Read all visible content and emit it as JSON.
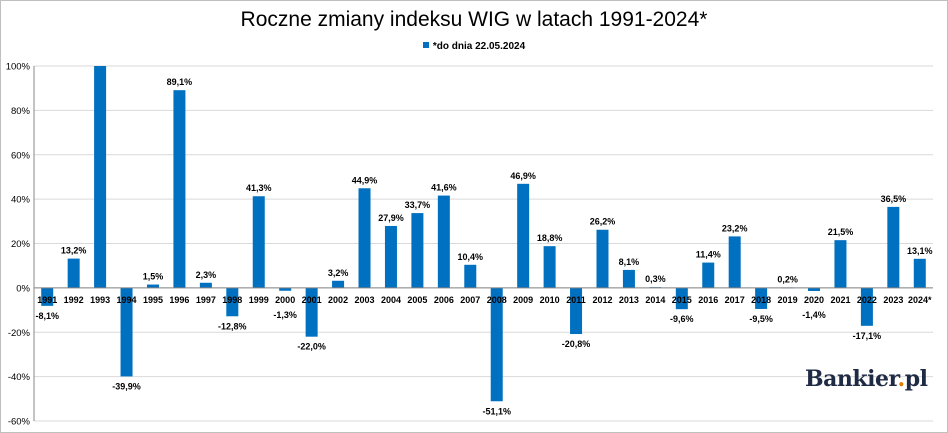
{
  "chart_data": {
    "type": "bar",
    "title": "Roczne zmiany indeksu WIG w latach 1991-2024*",
    "legend": {
      "label": "*do dnia 22.05.2024",
      "position": "top-center"
    },
    "categories": [
      "1991",
      "1992",
      "1993",
      "1994",
      "1995",
      "1996",
      "1997",
      "1998",
      "1999",
      "2000",
      "2001",
      "2002",
      "2003",
      "2004",
      "2005",
      "2006",
      "2007",
      "2008",
      "2009",
      "2010",
      "2011",
      "2012",
      "2013",
      "2014",
      "2015",
      "2016",
      "2017",
      "2018",
      "2019",
      "2020",
      "2021",
      "2022",
      "2023",
      "2024*"
    ],
    "values": [
      -8.1,
      13.2,
      100,
      -39.9,
      1.5,
      89.1,
      2.3,
      -12.8,
      41.3,
      -1.3,
      -22.0,
      3.2,
      44.9,
      27.9,
      33.7,
      41.6,
      10.4,
      -51.1,
      46.9,
      18.8,
      -20.8,
      26.2,
      8.1,
      0.3,
      -9.6,
      11.4,
      23.2,
      -9.5,
      0.2,
      -1.4,
      21.5,
      -17.1,
      36.5,
      13.1
    ],
    "data_labels": [
      "-8,1%",
      "13,2%",
      "",
      "-39,9%",
      "1,5%",
      "89,1%",
      "2,3%",
      "-12,8%",
      "41,3%",
      "-1,3%",
      "-22,0%",
      "3,2%",
      "44,9%",
      "27,9%",
      "33,7%",
      "41,6%",
      "10,4%",
      "-51,1%",
      "46,9%",
      "18,8%",
      "-20,8%",
      "26,2%",
      "8,1%",
      "0,3%",
      "-9,6%",
      "11,4%",
      "23,2%",
      "-9,5%",
      "0,2%",
      "-1,4%",
      "21,5%",
      "-17,1%",
      "36,5%",
      "13,1%"
    ],
    "yticks": [
      -60,
      -40,
      -20,
      0,
      20,
      40,
      60,
      80,
      100
    ],
    "ytick_labels": [
      "-60%",
      "-40%",
      "-20%",
      "0%",
      "20%",
      "40%",
      "60%",
      "80%",
      "100%"
    ],
    "ylim": [
      -60,
      100
    ],
    "grid": true,
    "bar_color": "#0070c0"
  },
  "watermark": {
    "name": "Bankier",
    "dot": ".",
    "suffix": "pl"
  }
}
